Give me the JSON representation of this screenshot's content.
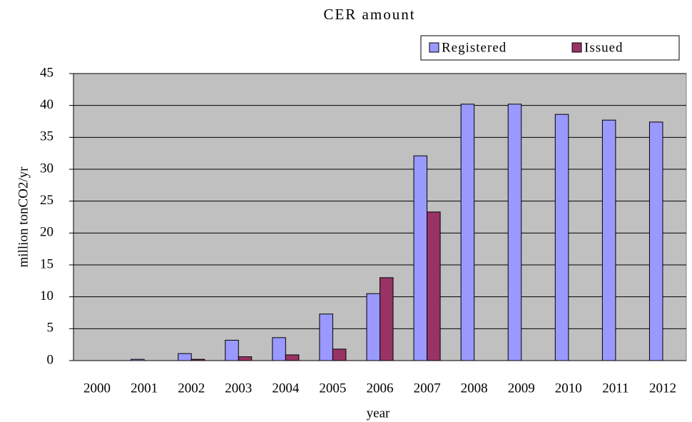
{
  "chart_data": {
    "type": "bar",
    "title": "CER amount",
    "x_label": "year",
    "y_label": "million tonCO2/yr",
    "categories": [
      "2000",
      "2001",
      "2002",
      "2003",
      "2004",
      "2005",
      "2006",
      "2007",
      "2008",
      "2009",
      "2010",
      "2011",
      "2012"
    ],
    "series": [
      {
        "name": "Registered",
        "color": "#9999ff",
        "values": [
          0,
          0.2,
          1.1,
          3.2,
          3.6,
          7.3,
          10.5,
          32.1,
          40.2,
          40.2,
          38.6,
          37.7,
          37.4
        ]
      },
      {
        "name": "Issued",
        "color": "#993366",
        "values": [
          0,
          0,
          0.2,
          0.6,
          0.9,
          1.8,
          13.0,
          23.3,
          null,
          null,
          null,
          null,
          null
        ]
      }
    ],
    "ylim": [
      0,
      45
    ],
    "yticks": [
      0,
      5,
      10,
      15,
      20,
      25,
      30,
      35,
      40,
      45
    ],
    "grid": true,
    "legend": "top-right",
    "plot_background": "#c0c0c0"
  }
}
